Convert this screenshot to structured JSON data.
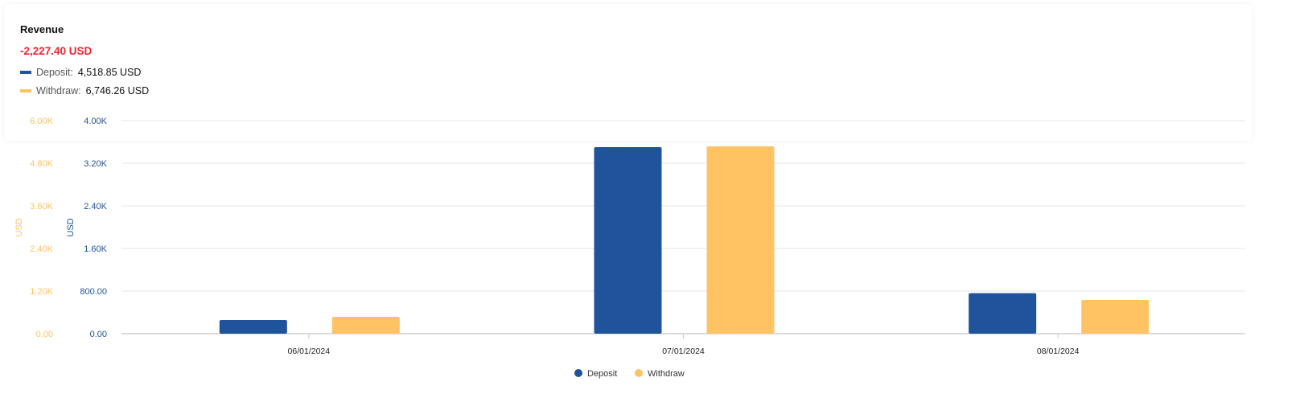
{
  "header": {
    "title": "Revenue",
    "total": "-2,227.40 USD",
    "summary": [
      {
        "label": "Deposit:",
        "value": "4,518.85 USD",
        "color": "#1f539c"
      },
      {
        "label": "Withdraw:",
        "value": "6,746.26 USD",
        "color": "#ffc364"
      }
    ]
  },
  "chart_data": {
    "type": "bar",
    "categories": [
      "06/01/2024",
      "07/01/2024",
      "08/01/2024"
    ],
    "series": [
      {
        "name": "Deposit",
        "values": [
          257,
          3502,
          760
        ],
        "color": "#1f539c",
        "axis": "right-inner"
      },
      {
        "name": "Withdraw",
        "values": [
          475,
          5275,
          951
        ],
        "color": "#ffc364",
        "axis": "left-outer"
      }
    ],
    "axes": [
      {
        "label": "USD",
        "color": "#ffc364",
        "ylim": [
          0,
          6000
        ],
        "ticks": [
          "0.00",
          "1.20K",
          "2.40K",
          "3.60K",
          "4.80K",
          "6.00K"
        ]
      },
      {
        "label": "USD",
        "color": "#1f539c",
        "ylim": [
          0,
          4000
        ],
        "ticks": [
          "0.00",
          "800.00",
          "1.60K",
          "2.40K",
          "3.20K",
          "4.00K"
        ]
      }
    ],
    "grid": true,
    "legend": "bottom-center"
  }
}
